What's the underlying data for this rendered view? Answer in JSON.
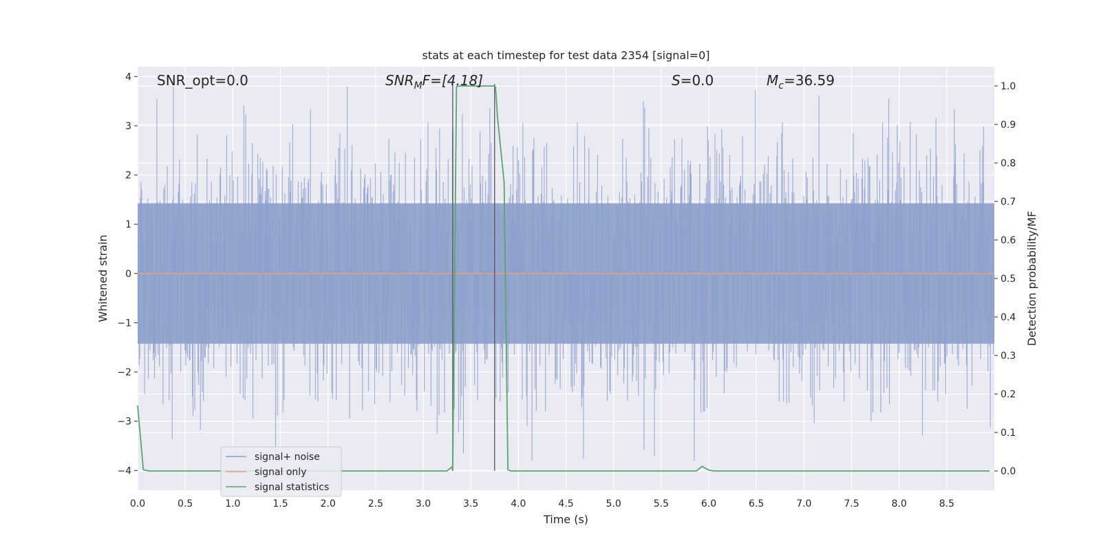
{
  "chart_data": {
    "type": "line",
    "title": "stats at each timestep for test data 2354 [signal=0]",
    "xlabel": "Time (s)",
    "ylabel": "Whitened strain",
    "y2label": "Detection probability/MF",
    "xlim": [
      0.0,
      9.0
    ],
    "ylim": [
      -4.4,
      4.2
    ],
    "y2lim": [
      -0.05,
      1.05
    ],
    "xticks": [
      "0.0",
      "0.5",
      "1.0",
      "1.5",
      "2.0",
      "2.5",
      "3.0",
      "3.5",
      "4.0",
      "4.5",
      "5.0",
      "5.5",
      "6.0",
      "6.5",
      "7.0",
      "7.5",
      "8.0",
      "8.5"
    ],
    "yticks": [
      "−4",
      "−3",
      "−2",
      "−1",
      "0",
      "1",
      "2",
      "3",
      "4"
    ],
    "y2ticks": [
      "0.0",
      "0.1",
      "0.2",
      "0.3",
      "0.4",
      "0.5",
      "0.6",
      "0.7",
      "0.8",
      "0.9",
      "1.0"
    ],
    "grid": true,
    "legend_placement": "lower-left",
    "annotations": {
      "snr_opt": "SNR_opt=0.0",
      "snr_mf_main": "SNR",
      "snr_mf_sub": "M",
      "snr_mf_rest": "F=[4.18]",
      "s_main": "S",
      "s_rest": "=0.0",
      "mc_main": "M",
      "mc_sub": "c",
      "mc_rest": "=36.59"
    },
    "series": [
      {
        "name": "signal+ noise",
        "color": "#8da0cb",
        "kind": "noise",
        "envelope": {
          "typical_abs": 1.5,
          "min": -3.9,
          "max": 3.8
        }
      },
      {
        "name": "signal only",
        "color": "#e5a07a",
        "x": [
          0.0,
          9.0
        ],
        "y": [
          0.0,
          0.0
        ]
      },
      {
        "name": "signal statistics",
        "color": "#55a868",
        "axis": "y2",
        "x": [
          0.0,
          0.06,
          0.12,
          3.25,
          3.3,
          3.31,
          3.35,
          3.4,
          3.74,
          3.76,
          3.78,
          3.85,
          3.89,
          3.92,
          5.87,
          5.93,
          6.0,
          6.05,
          8.95
        ],
        "y": [
          0.17,
          0.003,
          0.0,
          0.0,
          0.01,
          0.0,
          0.999,
          1.0,
          1.0,
          0.998,
          0.92,
          0.75,
          0.003,
          0.0,
          0.0,
          0.012,
          0.002,
          0.0,
          0.0
        ]
      }
    ],
    "markers": [
      3.31,
      3.75
    ]
  }
}
